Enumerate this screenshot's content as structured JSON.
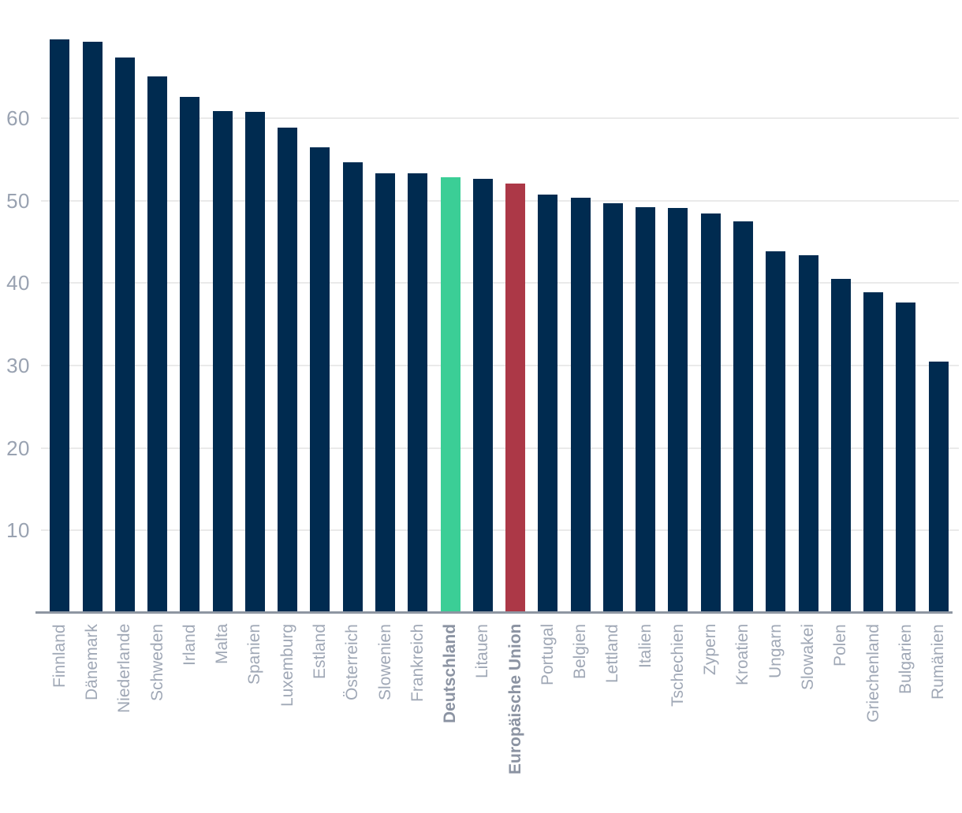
{
  "chart_data": {
    "type": "bar",
    "title": "",
    "categories": [
      "Finnland",
      "Dänemark",
      "Niederlande",
      "Schweden",
      "Irland",
      "Malta",
      "Spanien",
      "Luxemburg",
      "Estland",
      "Österreich",
      "Slowenien",
      "Frankreich",
      "Deutschland",
      "Litauen",
      "Europäische Union",
      "Portugal",
      "Belgien",
      "Lettland",
      "Italien",
      "Tschechien",
      "Zypern",
      "Kroatien",
      "Ungarn",
      "Slowakei",
      "Polen",
      "Griechenland",
      "Bulgarien",
      "Rumänien"
    ],
    "values": [
      69.5,
      69.2,
      67.3,
      65.0,
      62.6,
      60.8,
      60.7,
      58.8,
      56.4,
      54.6,
      53.3,
      53.3,
      52.8,
      52.6,
      52.1,
      50.7,
      50.3,
      49.7,
      49.2,
      49.1,
      48.4,
      47.5,
      43.8,
      43.4,
      40.5,
      38.9,
      37.6,
      30.5
    ],
    "xlabel": "",
    "ylabel": "",
    "y_ticks": [
      10,
      20,
      30,
      40,
      50,
      60
    ],
    "ylim": [
      0,
      72
    ],
    "grid": "horizontal",
    "legend": "none",
    "bar_color_default": "#002B50",
    "highlights": {
      "Deutschland": "#3BCE96",
      "Europäische Union": "#AC3847"
    },
    "bold_labels": [
      "Deutschland",
      "Europäische Union"
    ]
  },
  "colors": {
    "background": "#FFFFFF",
    "gridline": "#EAEAEA",
    "axis_line": "#8E96A2",
    "y_tick_label": "#99A2B1",
    "x_label": "#A0A8B6",
    "x_label_bold": "#8B93A2"
  }
}
